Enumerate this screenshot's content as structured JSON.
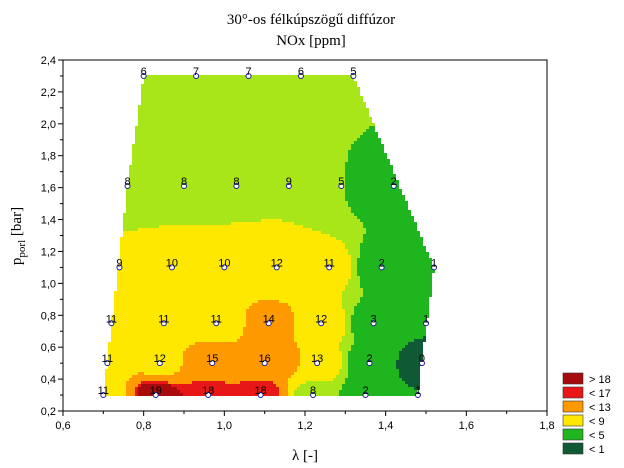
{
  "chart_data": {
    "type": "contour",
    "title": "30°-os félkúpszögű diffúzor",
    "subtitle": "NOx [ppm]",
    "xlabel": "λ [-]",
    "ylabel_main": "p",
    "ylabel_sub": "porl",
    "ylabel_unit": " [bar]",
    "xlim": [
      0.6,
      1.8
    ],
    "ylim": [
      0.2,
      2.4
    ],
    "xticks": [
      "0,6",
      "0,8",
      "1,0",
      "1,2",
      "1,4",
      "1,6",
      "1,8"
    ],
    "yticks": [
      "0,2",
      "0,4",
      "0,6",
      "0,8",
      "1,0",
      "1,2",
      "1,4",
      "1,6",
      "1,8",
      "2,0",
      "2,2",
      "2,4"
    ],
    "levels": [
      1,
      5,
      9,
      13,
      17,
      18
    ],
    "colors": [
      "#0f5a35",
      "#1fb51f",
      "#a9e619",
      "#ffe800",
      "#ff9900",
      "#e81717",
      "#a80b0b"
    ],
    "legend": [
      {
        "label": "> 18",
        "color": "#a80b0b"
      },
      {
        "label": "< 17",
        "color": "#e81717"
      },
      {
        "label": "< 13",
        "color": "#ff9900"
      },
      {
        "label": "< 9",
        "color": "#ffe800"
      },
      {
        "label": "< 5",
        "color": "#1fb51f"
      },
      {
        "label": "< 1",
        "color": "#0f5a35"
      }
    ],
    "legend_position": "bottom-right",
    "points": [
      {
        "x": 0.7,
        "y": 0.3,
        "v": "11"
      },
      {
        "x": 0.83,
        "y": 0.3,
        "v": "19"
      },
      {
        "x": 0.96,
        "y": 0.3,
        "v": "18"
      },
      {
        "x": 1.09,
        "y": 0.3,
        "v": "18"
      },
      {
        "x": 1.22,
        "y": 0.3,
        "v": "8"
      },
      {
        "x": 1.35,
        "y": 0.3,
        "v": "2"
      },
      {
        "x": 1.48,
        "y": 0.3,
        "v": "1"
      },
      {
        "x": 0.71,
        "y": 0.5,
        "v": "11"
      },
      {
        "x": 0.84,
        "y": 0.5,
        "v": "12"
      },
      {
        "x": 0.97,
        "y": 0.5,
        "v": "15"
      },
      {
        "x": 1.1,
        "y": 0.5,
        "v": "16"
      },
      {
        "x": 1.23,
        "y": 0.5,
        "v": "13"
      },
      {
        "x": 1.36,
        "y": 0.5,
        "v": "2"
      },
      {
        "x": 1.49,
        "y": 0.5,
        "v": "0"
      },
      {
        "x": 0.72,
        "y": 0.75,
        "v": "11"
      },
      {
        "x": 0.85,
        "y": 0.75,
        "v": "11"
      },
      {
        "x": 0.98,
        "y": 0.75,
        "v": "11"
      },
      {
        "x": 1.11,
        "y": 0.75,
        "v": "14"
      },
      {
        "x": 1.24,
        "y": 0.75,
        "v": "12"
      },
      {
        "x": 1.37,
        "y": 0.75,
        "v": "3"
      },
      {
        "x": 1.5,
        "y": 0.75,
        "v": "1"
      },
      {
        "x": 0.74,
        "y": 1.1,
        "v": "9"
      },
      {
        "x": 0.87,
        "y": 1.1,
        "v": "10"
      },
      {
        "x": 1.0,
        "y": 1.1,
        "v": "10"
      },
      {
        "x": 1.13,
        "y": 1.1,
        "v": "12"
      },
      {
        "x": 1.26,
        "y": 1.1,
        "v": "11"
      },
      {
        "x": 1.39,
        "y": 1.1,
        "v": "2"
      },
      {
        "x": 1.52,
        "y": 1.1,
        "v": "1"
      },
      {
        "x": 0.76,
        "y": 1.61,
        "v": "8"
      },
      {
        "x": 0.9,
        "y": 1.61,
        "v": "8"
      },
      {
        "x": 1.03,
        "y": 1.61,
        "v": "8"
      },
      {
        "x": 1.16,
        "y": 1.61,
        "v": "9"
      },
      {
        "x": 1.29,
        "y": 1.61,
        "v": "5"
      },
      {
        "x": 1.42,
        "y": 1.61,
        "v": "2"
      },
      {
        "x": 0.8,
        "y": 2.3,
        "v": "6"
      },
      {
        "x": 0.93,
        "y": 2.3,
        "v": "7"
      },
      {
        "x": 1.06,
        "y": 2.3,
        "v": "7"
      },
      {
        "x": 1.19,
        "y": 2.3,
        "v": "6"
      },
      {
        "x": 1.32,
        "y": 2.3,
        "v": "5"
      }
    ]
  }
}
